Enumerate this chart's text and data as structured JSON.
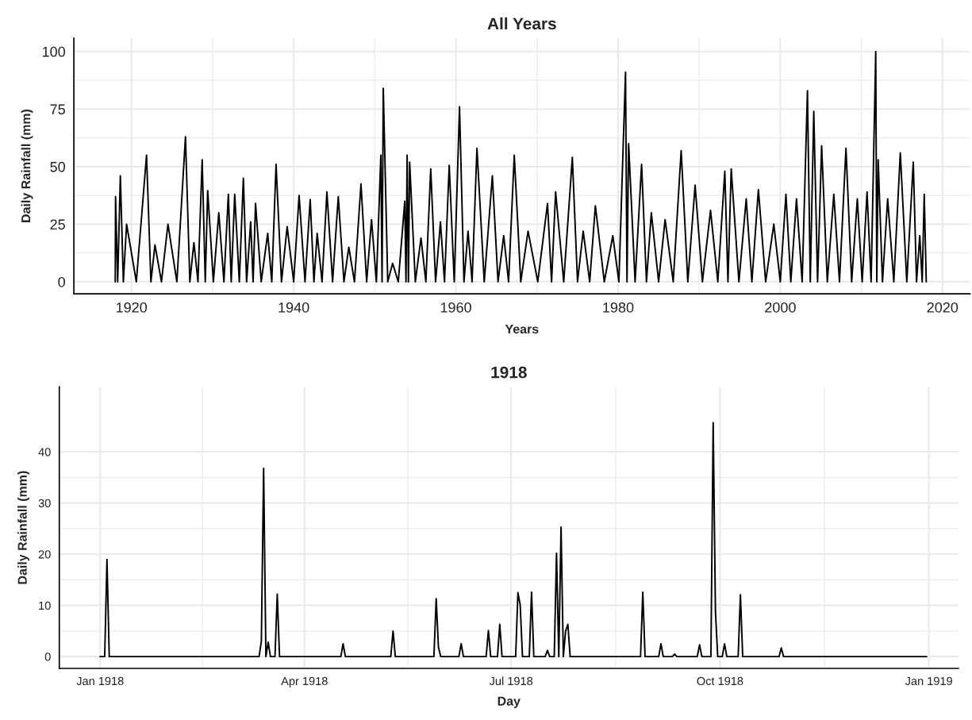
{
  "chart_data": [
    {
      "type": "line",
      "title": "All Years",
      "xlabel": "Years",
      "ylabel": "Daily Rainfall (mm)",
      "xlim": [
        1912.9,
        2023.4
      ],
      "xticks": [
        1920,
        1940,
        1960,
        1980,
        2000,
        2020
      ],
      "ylim": [
        -5.2,
        105.8
      ],
      "yticks": [
        0,
        25,
        50,
        75,
        100
      ],
      "grid": true,
      "marker": "none",
      "line_style": "solid",
      "series": [
        {
          "color": "#000000",
          "x": [
            1918.0,
            1918.04,
            1918.3,
            1918.63,
            1919.0,
            1919.4,
            1920.6,
            1921.86,
            1922.4,
            1922.9,
            1923.7,
            1924.5,
            1925.6,
            1926.66,
            1927.2,
            1927.7,
            1928.2,
            1928.72,
            1929.1,
            1929.4,
            1930.1,
            1930.77,
            1931.4,
            1931.95,
            1932.3,
            1932.73,
            1933.3,
            1933.8,
            1934.2,
            1934.7,
            1935.0,
            1935.3,
            1936.0,
            1936.8,
            1937.3,
            1937.83,
            1938.5,
            1939.2,
            1940.0,
            1940.67,
            1941.4,
            1942.04,
            1942.5,
            1942.9,
            1943.5,
            1944.1,
            1944.8,
            1945.5,
            1946.2,
            1946.8,
            1947.5,
            1948.3,
            1949.0,
            1949.6,
            1950.2,
            1950.75,
            1950.9,
            1951.05,
            1951.6,
            1952.2,
            1952.9,
            1953.7,
            1953.85,
            1953.99,
            1954.15,
            1954.3,
            1955.0,
            1955.7,
            1956.3,
            1956.9,
            1957.5,
            1958.1,
            1958.6,
            1959.18,
            1959.8,
            1960.45,
            1961.0,
            1961.5,
            1962.0,
            1962.6,
            1963.5,
            1964.5,
            1965.2,
            1965.9,
            1966.5,
            1967.2,
            1968.0,
            1968.9,
            1970.1,
            1971.3,
            1971.8,
            1972.3,
            1973.3,
            1974.36,
            1975.0,
            1975.7,
            1976.5,
            1977.2,
            1978.3,
            1979.35,
            1980.1,
            1980.92,
            1981.1,
            1981.3,
            1982.1,
            1982.9,
            1983.5,
            1984.1,
            1985.0,
            1985.8,
            1986.8,
            1987.78,
            1988.6,
            1989.5,
            1990.4,
            1991.4,
            1992.3,
            1993.16,
            1993.55,
            1993.95,
            1994.9,
            1995.8,
            1996.5,
            1997.3,
            1998.2,
            1999.2,
            2000.0,
            2000.7,
            2001.3,
            2002.0,
            2002.7,
            2003.35,
            2003.7,
            2004.13,
            2004.6,
            2005.1,
            2005.8,
            2006.6,
            2007.3,
            2008.1,
            2008.8,
            2009.5,
            2010.1,
            2010.7,
            2011.2,
            2011.77,
            2011.9,
            2012.07,
            2012.6,
            2013.24,
            2014.0,
            2014.8,
            2015.6,
            2016.4,
            2016.8,
            2017.2,
            2017.5,
            2017.75,
            2018.0
          ],
          "values": [
            0,
            37,
            0,
            46,
            0,
            25,
            0,
            55,
            0,
            16,
            0,
            25,
            0,
            63,
            0,
            17,
            0,
            53,
            0,
            39.6,
            0,
            30,
            0,
            38,
            0,
            38,
            0,
            45,
            0,
            26,
            0,
            34,
            0,
            21,
            0,
            51,
            0,
            24,
            0,
            37.5,
            0,
            35.7,
            0,
            21,
            0,
            39,
            0,
            37,
            0,
            15,
            0,
            42.5,
            0,
            27,
            0,
            55,
            0,
            84,
            0,
            8,
            0,
            35,
            0,
            55,
            0,
            52,
            0,
            19,
            0,
            49,
            0,
            26,
            0,
            50.6,
            0,
            76,
            0,
            22,
            0,
            58,
            0,
            46,
            0,
            20,
            0,
            55,
            0,
            22,
            0,
            34,
            0,
            39,
            0,
            54,
            0,
            22,
            0,
            33,
            0,
            20,
            0,
            91,
            0,
            60,
            0,
            51,
            0,
            30,
            0,
            27,
            0,
            57,
            0,
            42,
            0,
            31,
            0,
            48,
            0,
            49,
            0,
            36,
            0,
            40,
            0,
            25,
            0,
            38,
            0,
            36,
            0,
            83,
            0,
            74,
            0,
            59,
            0,
            38,
            0,
            58,
            0,
            36,
            0,
            39,
            0,
            100,
            0,
            53,
            0,
            36,
            0,
            56,
            0,
            52,
            0,
            20,
            0,
            38,
            0
          ]
        }
      ]
    },
    {
      "type": "line",
      "title": "1918",
      "xlabel": "Day",
      "ylabel": "Daily Rainfall (mm)",
      "xlim": [
        "1917-12-14",
        "1919-01-14"
      ],
      "xticks": [
        {
          "value": "1918-01-01",
          "label": "Jan 1918"
        },
        {
          "value": "1918-04-01",
          "label": "Apr 1918"
        },
        {
          "value": "1918-07-01",
          "label": "Jul 1918"
        },
        {
          "value": "1918-10-01",
          "label": "Oct 1918"
        },
        {
          "value": "1919-01-01",
          "label": "Jan 1919"
        }
      ],
      "ylim": [
        -2.3,
        52.7
      ],
      "yticks": [
        0,
        10,
        20,
        30,
        40
      ],
      "grid": true,
      "marker": "none",
      "line_style": "solid",
      "series": [
        {
          "color": "#000000",
          "x": [
            "1918-01-01",
            "1918-01-03",
            "1918-01-04",
            "1918-01-05",
            "1918-03-12",
            "1918-03-13",
            "1918-03-14",
            "1918-03-15",
            "1918-03-16",
            "1918-03-17",
            "1918-03-19",
            "1918-03-20",
            "1918-03-21",
            "1918-04-17",
            "1918-04-18",
            "1918-04-19",
            "1918-05-09",
            "1918-05-10",
            "1918-05-11",
            "1918-05-28",
            "1918-05-29",
            "1918-05-30",
            "1918-05-31",
            "1918-06-08",
            "1918-06-09",
            "1918-06-10",
            "1918-06-20",
            "1918-06-21",
            "1918-06-22",
            "1918-06-25",
            "1918-06-26",
            "1918-06-27",
            "1918-07-03",
            "1918-07-04",
            "1918-07-05",
            "1918-07-06",
            "1918-07-09",
            "1918-07-10",
            "1918-07-11",
            "1918-07-16",
            "1918-07-17",
            "1918-07-18",
            "1918-07-20",
            "1918-07-21",
            "1918-07-22",
            "1918-07-23",
            "1918-07-24",
            "1918-07-25",
            "1918-07-26",
            "1918-07-27",
            "1918-08-27",
            "1918-08-28",
            "1918-08-29",
            "1918-09-04",
            "1918-09-05",
            "1918-09-06",
            "1918-09-10",
            "1918-09-11",
            "1918-09-12",
            "1918-09-21",
            "1918-09-22",
            "1918-09-23",
            "1918-09-27",
            "1918-09-28",
            "1918-09-29",
            "1918-09-30",
            "1918-10-02",
            "1918-10-03",
            "1918-10-04",
            "1918-10-09",
            "1918-10-10",
            "1918-10-11",
            "1918-10-27",
            "1918-10-28",
            "1918-10-29",
            "1918-12-31"
          ],
          "values": [
            0,
            0,
            19,
            0,
            0,
            3,
            36.8,
            0,
            2.8,
            0,
            0,
            12.2,
            0,
            0,
            2.5,
            0,
            0,
            5,
            0,
            0,
            11.3,
            1.8,
            0,
            0,
            2.5,
            0,
            0,
            5.1,
            0,
            0,
            6.3,
            0,
            0,
            12.5,
            10.1,
            0,
            0,
            12.6,
            0,
            0,
            1.2,
            0,
            0,
            20.2,
            0,
            25.3,
            0,
            5,
            6.3,
            0,
            0,
            12.6,
            0,
            0,
            2.5,
            0,
            0,
            0.5,
            0,
            0,
            2.3,
            0,
            0,
            45.7,
            8.8,
            0,
            0,
            2.5,
            0,
            0,
            12.1,
            0,
            0,
            1.7,
            0,
            0
          ]
        }
      ]
    }
  ]
}
